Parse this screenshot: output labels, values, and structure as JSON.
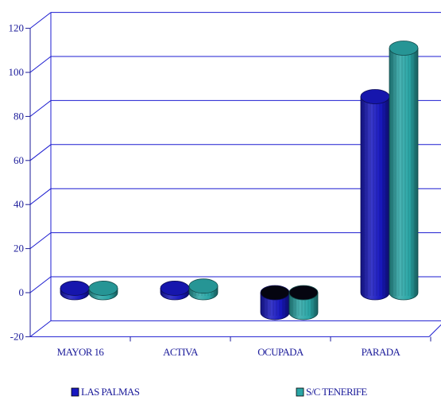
{
  "chart_data": {
    "type": "bar",
    "style": "3d-cylinder",
    "categories": [
      "MAYOR 16",
      "ACTIVA",
      "OCUPADA",
      "PARADA"
    ],
    "series": [
      {
        "name": "LAS PALMAS",
        "color": "#1818c0",
        "values": [
          2,
          2,
          -9,
          89
        ]
      },
      {
        "name": "S/C TENERIFE",
        "color": "#2aa6a6",
        "values": [
          2,
          3,
          -9,
          111
        ]
      }
    ],
    "y_ticks": [
      120,
      100,
      80,
      60,
      40,
      20,
      0,
      -20
    ],
    "ylim": [
      -20,
      120
    ],
    "grid": true,
    "legend_position": "bottom"
  }
}
